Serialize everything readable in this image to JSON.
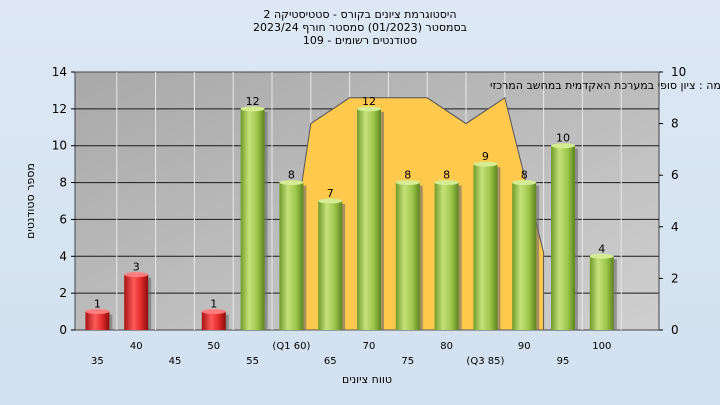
{
  "header": {
    "title": "היסטוגרמת ציונים בקורס - סטטיסטיקה 2",
    "subtitle": "בסמסטר  (01/2023)  סמסטר חורף  2023/24",
    "count_line": "סטודנטים רשומים - 109"
  },
  "colors": {
    "fail_bar": "#e02a2a",
    "pass_bar": "#9cc54a",
    "distribution": "#ffc94d",
    "plot_bg": "#b8b8b8"
  },
  "chart_data": {
    "type": "bar",
    "title": "היסטוגרמת ציונים בקורס - סטטיסטיקה 2",
    "xlabel": "טווח ציונים",
    "ylabel": "מספר סטודנטים",
    "ylim": [
      0,
      14
    ],
    "y_ticks": [
      0,
      2,
      4,
      6,
      8,
      10,
      12,
      14
    ],
    "y2lim": [
      0,
      10
    ],
    "y2_ticks": [
      0,
      2,
      4,
      6,
      8,
      10
    ],
    "grid": true,
    "annotation": "במשימה : ציון סופי במערכת האקדמית במחשב המרכזי",
    "x_labels": [
      "35",
      "40",
      "45",
      "50",
      "55",
      "(Q1 60)",
      "65",
      "70",
      "75",
      "80",
      "(Q3 85)",
      "90",
      "95",
      "100"
    ],
    "bins": [
      {
        "bin": 1,
        "value": 1,
        "label": "1",
        "passing": false
      },
      {
        "bin": 2,
        "value": 3,
        "label": "3",
        "passing": false
      },
      {
        "bin": 4,
        "value": 1,
        "label": "1",
        "passing": false
      },
      {
        "bin": 5,
        "value": 12,
        "label": "12",
        "passing": true
      },
      {
        "bin": 6,
        "value": 8,
        "label": "8",
        "passing": true
      },
      {
        "bin": 7,
        "value": 7,
        "label": "7",
        "passing": true
      },
      {
        "bin": 8,
        "value": 12,
        "label": "12",
        "passing": true
      },
      {
        "bin": 9,
        "value": 8,
        "label": "8",
        "passing": true
      },
      {
        "bin": 10,
        "value": 8,
        "label": "8",
        "passing": true
      },
      {
        "bin": 11,
        "value": 9,
        "label": "9",
        "passing": true
      },
      {
        "bin": 12,
        "value": 8,
        "label": "8",
        "passing": true
      },
      {
        "bin": 13,
        "value": 10,
        "label": "10",
        "passing": true
      },
      {
        "bin": 14,
        "value": 4,
        "label": "4",
        "passing": true
      }
    ],
    "distribution_area": {
      "axis": "right",
      "points": [
        {
          "bin": 5.2,
          "value": 0
        },
        {
          "bin": 6,
          "value": 8
        },
        {
          "bin": 7,
          "value": 9
        },
        {
          "bin": 8,
          "value": 9
        },
        {
          "bin": 9,
          "value": 9
        },
        {
          "bin": 10,
          "value": 8
        },
        {
          "bin": 11,
          "value": 9
        },
        {
          "bin": 12,
          "value": 3
        }
      ]
    }
  }
}
